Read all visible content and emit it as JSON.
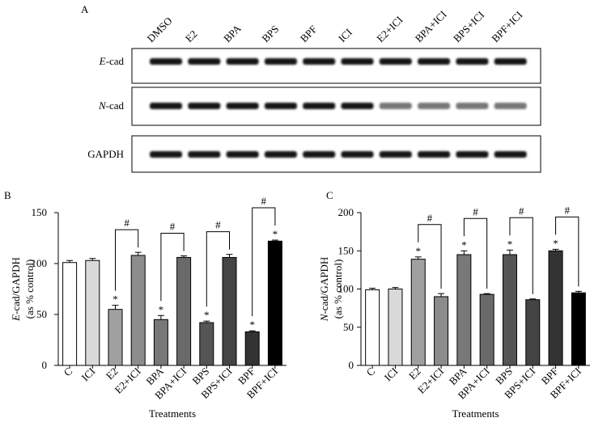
{
  "blot": {
    "label": "A",
    "lanes": [
      "DMSO",
      "E2",
      "BPA",
      "BPS",
      "BPF",
      "ICI",
      "E2+ICI",
      "BPA+ICI",
      "BPS+ICI",
      "BPF+ICI"
    ],
    "rows": [
      "E-cad",
      "N-cad",
      "GAPDH"
    ]
  },
  "chart_data": [
    {
      "type": "bar",
      "label": "B",
      "categories": [
        "C",
        "ICI",
        "E2",
        "E2+ICI",
        "BPA",
        "BPA+ICI",
        "BPS",
        "BPS+ICI",
        "BPF",
        "BPF+ICI"
      ],
      "values": [
        101,
        103,
        55,
        108,
        45,
        106,
        42,
        106,
        33,
        122
      ],
      "errors": [
        2,
        2,
        4,
        3,
        4,
        1.5,
        1.5,
        3,
        1,
        1
      ],
      "colors": [
        "#ffffff",
        "#d9d9d9",
        "#a0a0a0",
        "#8c8c8c",
        "#787878",
        "#6a6a6a",
        "#555555",
        "#444444",
        "#333333",
        "#000000"
      ],
      "markers": [
        null,
        null,
        "*",
        null,
        "*",
        null,
        "*",
        null,
        "*",
        "*"
      ],
      "brackets": [
        {
          "from": "E2",
          "to": "E2+ICI",
          "label": "#"
        },
        {
          "from": "BPA",
          "to": "BPA+ICI",
          "label": "#"
        },
        {
          "from": "BPS",
          "to": "BPS+ICI",
          "label": "#"
        },
        {
          "from": "BPF",
          "to": "BPF+ICI",
          "label": "#"
        }
      ],
      "ylim": [
        0,
        150
      ],
      "yticks": [
        0,
        50,
        100,
        150
      ],
      "ylabel": [
        "E-cad/GAPDH",
        "(as % control)"
      ],
      "xlabel": "Treatments"
    },
    {
      "type": "bar",
      "label": "C",
      "categories": [
        "C",
        "ICI",
        "E2",
        "E2+ICI",
        "BPA",
        "BPA+ICI",
        "BPS",
        "BPS+ICI",
        "BPF",
        "BPF+ICI"
      ],
      "values": [
        99,
        100,
        139,
        90,
        145,
        93,
        145,
        86,
        150,
        95
      ],
      "errors": [
        2,
        2,
        3,
        4,
        5,
        1,
        6,
        1,
        2,
        2
      ],
      "colors": [
        "#ffffff",
        "#d9d9d9",
        "#a0a0a0",
        "#8c8c8c",
        "#787878",
        "#6a6a6a",
        "#555555",
        "#444444",
        "#333333",
        "#000000"
      ],
      "markers": [
        null,
        null,
        "*",
        null,
        "*",
        null,
        "*",
        null,
        "*",
        null
      ],
      "brackets": [
        {
          "from": "E2",
          "to": "E2+ICI",
          "label": "#"
        },
        {
          "from": "BPA",
          "to": "BPA+ICI",
          "label": "#"
        },
        {
          "from": "BPS",
          "to": "BPS+ICI",
          "label": "#"
        },
        {
          "from": "BPF",
          "to": "BPF+ICI",
          "label": "#"
        }
      ],
      "ylim": [
        0,
        200
      ],
      "yticks": [
        0,
        50,
        100,
        150,
        200
      ],
      "ylabel": [
        "N-cad/GAPDH",
        "(as % control)"
      ],
      "xlabel": "Treatments"
    }
  ]
}
